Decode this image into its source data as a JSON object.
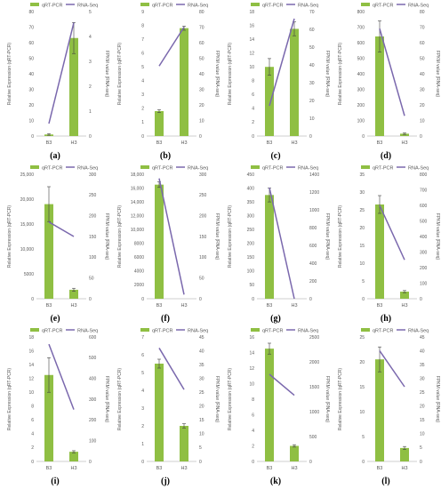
{
  "legend": {
    "qrt_label": "qRT-PCR",
    "rna_label": "RNA-Seq"
  },
  "colors": {
    "bar": "#8fbf43",
    "line": "#7a68ad",
    "axis": "#bfbfbf",
    "text": "#595959",
    "error": "#404040"
  },
  "chart_data": [
    {
      "type": "bar",
      "panel_label": "(a)",
      "categories": [
        "B3",
        "H3"
      ],
      "series": [
        {
          "name": "qRT-PCR",
          "axis": "left",
          "values": [
            1.0,
            63.0
          ],
          "error": [
            0.5,
            10.0
          ]
        },
        {
          "name": "RNA-Seq",
          "axis": "right",
          "values": [
            0.5,
            4.55
          ]
        }
      ],
      "ylabel": "Relative Expression (qRT-PCR)",
      "y2label": "FPKM value (RNA-seq)",
      "ylim": [
        0,
        80
      ],
      "yticks": [
        "0",
        "10",
        "20",
        "30",
        "40",
        "50",
        "60",
        "70",
        "80"
      ],
      "y2lim": [
        0,
        5
      ],
      "y2ticks": [
        "0",
        "1",
        "2",
        "3",
        "4",
        "5"
      ],
      "legend_position": "top",
      "grid": false
    },
    {
      "type": "bar",
      "panel_label": "(b)",
      "categories": [
        "B3",
        "H3"
      ],
      "series": [
        {
          "name": "qRT-PCR",
          "axis": "left",
          "values": [
            1.8,
            7.8
          ],
          "error": [
            0.1,
            0.15
          ]
        },
        {
          "name": "RNA-Seq",
          "axis": "right",
          "values": [
            45,
            70
          ]
        }
      ],
      "ylabel": "Relative Expression (qRT-PCR)",
      "y2label": "FPKM value (RNA-seq)",
      "ylim": [
        0,
        9
      ],
      "yticks": [
        "0",
        "1",
        "2",
        "3",
        "4",
        "5",
        "6",
        "7",
        "8",
        "9"
      ],
      "y2lim": [
        0,
        80
      ],
      "y2ticks": [
        "0",
        "10",
        "20",
        "30",
        "40",
        "50",
        "60",
        "70",
        "80"
      ],
      "legend_position": "top",
      "grid": false
    },
    {
      "type": "bar",
      "panel_label": "(c)",
      "categories": [
        "B3",
        "H3"
      ],
      "series": [
        {
          "name": "qRT-PCR",
          "axis": "left",
          "values": [
            10.0,
            15.5
          ],
          "error": [
            1.2,
            1.0
          ]
        },
        {
          "name": "RNA-Seq",
          "axis": "right",
          "values": [
            17,
            66
          ]
        }
      ],
      "ylabel": "Relative Expression (qRT-PCR)",
      "y2label": "FPKM value (RNA-seq)",
      "ylim": [
        0,
        18
      ],
      "yticks": [
        "0",
        "2",
        "4",
        "6",
        "8",
        "10",
        "12",
        "14",
        "16",
        "18"
      ],
      "y2lim": [
        0,
        70
      ],
      "y2ticks": [
        "0",
        "10",
        "20",
        "30",
        "40",
        "50",
        "60",
        "70"
      ],
      "legend_position": "top",
      "grid": false
    },
    {
      "type": "bar",
      "panel_label": "(d)",
      "categories": [
        "B3",
        "H3"
      ],
      "series": [
        {
          "name": "qRT-PCR",
          "axis": "left",
          "values": [
            640,
            15
          ],
          "error": [
            100,
            5
          ]
        },
        {
          "name": "RNA-Seq",
          "axis": "right",
          "values": [
            69,
            13
          ]
        }
      ],
      "ylabel": "Relative Expression (qRT-PCR)",
      "y2label": "FPKM value (RNA-seq)",
      "ylim": [
        0,
        800
      ],
      "yticks": [
        "0",
        "100",
        "200",
        "300",
        "400",
        "500",
        "600",
        "700",
        "800"
      ],
      "y2lim": [
        0,
        80
      ],
      "y2ticks": [
        "0",
        "10",
        "20",
        "30",
        "40",
        "50",
        "60",
        "70",
        "80"
      ],
      "legend_position": "top",
      "grid": false
    },
    {
      "type": "bar",
      "panel_label": "(e)",
      "categories": [
        "B3",
        "H3"
      ],
      "series": [
        {
          "name": "qRT-PCR",
          "axis": "left",
          "values": [
            19000,
            1800
          ],
          "error": [
            3500,
            300
          ]
        },
        {
          "name": "RNA-Seq",
          "axis": "right",
          "values": [
            185,
            150
          ]
        }
      ],
      "ylabel": "Relative Expression (qRT-PCR)",
      "y2label": "FPKM value (RNA-seq)",
      "ylim": [
        0,
        25000
      ],
      "yticks": [
        "0",
        "5000",
        "10,000",
        "15,000",
        "20,000",
        "25,000"
      ],
      "y2lim": [
        0,
        300
      ],
      "y2ticks": [
        "0",
        "50",
        "100",
        "150",
        "200",
        "250",
        "300"
      ],
      "legend_position": "top",
      "grid": false
    },
    {
      "type": "bar",
      "panel_label": "(f)",
      "categories": [
        "B3",
        "H3"
      ],
      "series": [
        {
          "name": "qRT-PCR",
          "axis": "left",
          "values": [
            16500,
            0
          ],
          "error": [
            400,
            0
          ]
        },
        {
          "name": "RNA-Seq",
          "axis": "right",
          "values": [
            290,
            10
          ]
        }
      ],
      "ylabel": "Relative Expression (qRT-PCR)",
      "y2label": "FPKM value (RNA-seq)",
      "ylim": [
        0,
        18000
      ],
      "yticks": [
        "0",
        "2000",
        "4000",
        "6000",
        "8000",
        "10,000",
        "12,000",
        "14,000",
        "16,000",
        "18,000"
      ],
      "y2lim": [
        0,
        300
      ],
      "y2ticks": [
        "0",
        "50",
        "100",
        "150",
        "200",
        "250",
        "300"
      ],
      "legend_position": "top",
      "grid": false
    },
    {
      "type": "bar",
      "panel_label": "(g)",
      "categories": [
        "B3",
        "H3"
      ],
      "series": [
        {
          "name": "qRT-PCR",
          "axis": "left",
          "values": [
            375,
            0
          ],
          "error": [
            25,
            0
          ]
        },
        {
          "name": "RNA-Seq",
          "axis": "right",
          "values": [
            1250,
            0
          ]
        }
      ],
      "ylabel": "Relative Expression (qRT-PCR)",
      "y2label": "FPKM value (RNA-seq)",
      "ylim": [
        0,
        450
      ],
      "yticks": [
        "0",
        "50",
        "100",
        "150",
        "200",
        "250",
        "300",
        "350",
        "400",
        "450"
      ],
      "y2lim": [
        0,
        1400
      ],
      "y2ticks": [
        "0",
        "200",
        "400",
        "600",
        "800",
        "1000",
        "1200",
        "1400"
      ],
      "legend_position": "top",
      "grid": false
    },
    {
      "type": "bar",
      "panel_label": "(h)",
      "categories": [
        "B3",
        "H3"
      ],
      "series": [
        {
          "name": "qRT-PCR",
          "axis": "left",
          "values": [
            26.5,
            2.0
          ],
          "error": [
            2.5,
            0.3
          ]
        },
        {
          "name": "RNA-Seq",
          "axis": "right",
          "values": [
            600,
            250
          ]
        }
      ],
      "ylabel": "Relative Expression (qRT-PCR)",
      "y2label": "FPKM value (RNA-seq)",
      "ylim": [
        0,
        35
      ],
      "yticks": [
        "0",
        "5",
        "10",
        "15",
        "20",
        "25",
        "30",
        "35"
      ],
      "y2lim": [
        0,
        800
      ],
      "y2ticks": [
        "0",
        "100",
        "200",
        "300",
        "400",
        "500",
        "600",
        "700",
        "800"
      ],
      "legend_position": "top",
      "grid": false
    },
    {
      "type": "bar",
      "panel_label": "(i)",
      "categories": [
        "B3",
        "H3"
      ],
      "series": [
        {
          "name": "qRT-PCR",
          "axis": "left",
          "values": [
            12.5,
            1.4
          ],
          "error": [
            2.5,
            0.15
          ]
        },
        {
          "name": "RNA-Seq",
          "axis": "right",
          "values": [
            565,
            250
          ]
        }
      ],
      "ylabel": "Relative Expression (qRT-PCR)",
      "y2label": "FPKM value (RNA-seq)",
      "ylim": [
        0,
        18
      ],
      "yticks": [
        "0",
        "2",
        "4",
        "6",
        "8",
        "10",
        "12",
        "14",
        "16",
        "18"
      ],
      "y2lim": [
        0,
        600
      ],
      "y2ticks": [
        "0",
        "100",
        "200",
        "300",
        "400",
        "500",
        "600"
      ],
      "legend_position": "top",
      "grid": false
    },
    {
      "type": "bar",
      "panel_label": "(j)",
      "categories": [
        "B3",
        "H3"
      ],
      "series": [
        {
          "name": "qRT-PCR",
          "axis": "left",
          "values": [
            5.5,
            2.0
          ],
          "error": [
            0.25,
            0.12
          ]
        },
        {
          "name": "RNA-Seq",
          "axis": "right",
          "values": [
            41,
            26
          ]
        }
      ],
      "ylabel": "Relative Expression (qRT-PCR)",
      "y2label": "FPKM value (RNA-seq)",
      "ylim": [
        0,
        7
      ],
      "yticks": [
        "0",
        "1",
        "2",
        "3",
        "4",
        "5",
        "6",
        "7"
      ],
      "y2lim": [
        0,
        45
      ],
      "y2ticks": [
        "0",
        "5",
        "10",
        "15",
        "20",
        "25",
        "30",
        "35",
        "40",
        "45"
      ],
      "legend_position": "top",
      "grid": false
    },
    {
      "type": "bar",
      "panel_label": "(k)",
      "categories": [
        "B3",
        "H3"
      ],
      "series": [
        {
          "name": "qRT-PCR",
          "axis": "left",
          "values": [
            14.5,
            2.0
          ],
          "error": [
            0.7,
            0.15
          ]
        },
        {
          "name": "RNA-Seq",
          "axis": "right",
          "values": [
            1750,
            1330
          ]
        }
      ],
      "ylabel": "Relative Expression (qRT-PCR)",
      "y2label": "FPKM value (RNA-seq)",
      "ylim": [
        0,
        16
      ],
      "yticks": [
        "0",
        "2",
        "4",
        "6",
        "8",
        "10",
        "12",
        "14",
        "16"
      ],
      "y2lim": [
        0,
        2500
      ],
      "y2ticks": [
        "0",
        "500",
        "1000",
        "1500",
        "2000",
        "2500"
      ],
      "legend_position": "top",
      "grid": false
    },
    {
      "type": "bar",
      "panel_label": "(l)",
      "categories": [
        "B3",
        "H3"
      ],
      "series": [
        {
          "name": "qRT-PCR",
          "axis": "left",
          "values": [
            20.5,
            2.7
          ],
          "error": [
            2.5,
            0.3
          ]
        },
        {
          "name": "RNA-Seq",
          "axis": "right",
          "values": [
            40,
            27
          ]
        }
      ],
      "ylabel": "Relative Expression (qRT-PCR)",
      "y2label": "FPKM value (RNA-seq)",
      "ylim": [
        0,
        25
      ],
      "yticks": [
        "0",
        "5",
        "10",
        "15",
        "20",
        "25"
      ],
      "y2lim": [
        0,
        45
      ],
      "y2ticks": [
        "0",
        "5",
        "10",
        "15",
        "20",
        "25",
        "30",
        "35",
        "40",
        "45"
      ],
      "legend_position": "top",
      "grid": false
    }
  ]
}
